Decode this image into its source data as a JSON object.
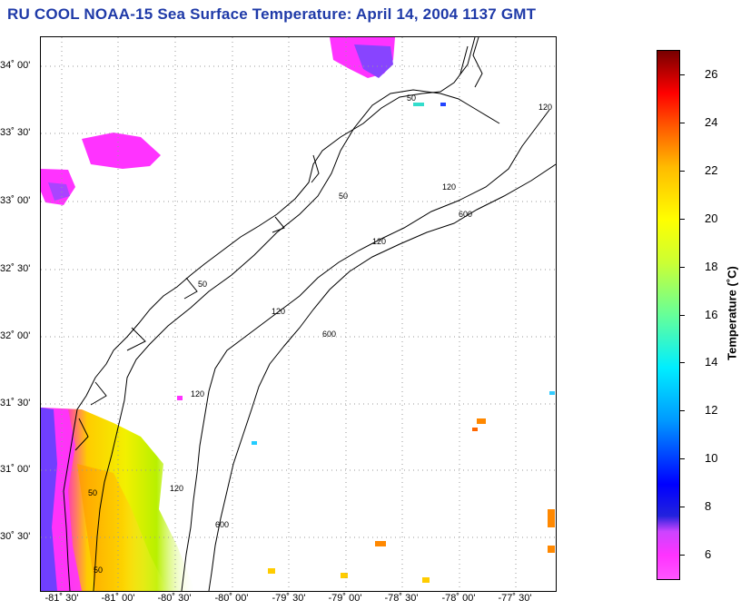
{
  "title": "RU COOL  NOAA-15  Sea Surface Temperature:  April 14, 2004 1137 GMT",
  "map": {
    "lat_labels": [
      "34˚ 00'",
      "33˚ 30'",
      "33˚ 00'",
      "32˚ 30'",
      "32˚ 00'",
      "31˚ 30'",
      "31˚ 00'",
      "30˚ 30'"
    ],
    "lon_labels": [
      "-81˚ 30'",
      "-81˚ 00'",
      "-80˚ 30'",
      "-80˚ 00'",
      "-79˚ 30'",
      "-79˚ 00'",
      "-78˚ 30'",
      "-78˚ 00'",
      "-77˚ 30'"
    ],
    "isobath_labels": [
      "50",
      "120",
      "600"
    ],
    "gridlines": "dotted",
    "colors": {
      "land": "#ffffff",
      "coast": "#000000",
      "grid": "#9a9a9a"
    }
  },
  "colorbar": {
    "title": "Temperature (˚C)",
    "ticks": [
      "26",
      "24",
      "22",
      "20",
      "18",
      "16",
      "14",
      "12",
      "10",
      "8",
      "6"
    ],
    "range": [
      5,
      27
    ]
  }
}
